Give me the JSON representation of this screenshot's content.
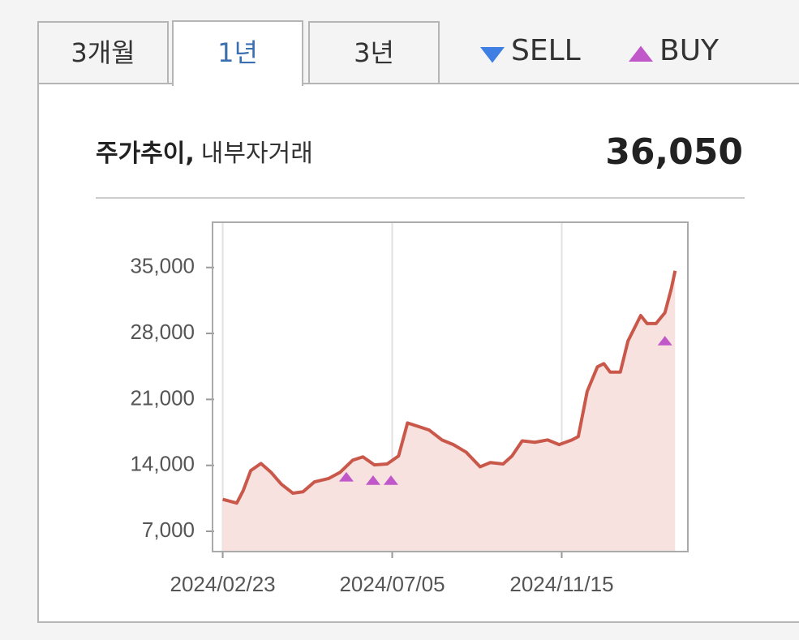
{
  "tabs": {
    "items": [
      "3개월",
      "1년",
      "3년"
    ],
    "active": 1
  },
  "header": {
    "title": "주가추이,",
    "subtitle": "내부자거래",
    "price": "36,050"
  },
  "chart_data": {
    "type": "line",
    "x": [
      "2024/02/23",
      "2024/03/05",
      "2024/03/10",
      "2024/03/16",
      "2024/03/24",
      "2024/04/01",
      "2024/04/09",
      "2024/04/18",
      "2024/04/26",
      "2024/05/05",
      "2024/05/16",
      "2024/05/25",
      "2024/06/04",
      "2024/06/12",
      "2024/06/21",
      "2024/07/01",
      "2024/07/10",
      "2024/07/17",
      "2024/07/25",
      "2024/08/03",
      "2024/08/13",
      "2024/08/22",
      "2024/09/01",
      "2024/09/12",
      "2024/09/20",
      "2024/09/30",
      "2024/10/07",
      "2024/10/15",
      "2024/10/25",
      "2024/11/04",
      "2024/11/13",
      "2024/11/23",
      "2024/11/28",
      "2024/12/05",
      "2024/12/13",
      "2024/12/18",
      "2024/12/23",
      "2024/12/31",
      "2025/01/06",
      "2025/01/16",
      "2025/01/21",
      "2025/01/28",
      "2025/02/04",
      "2025/02/09",
      "2025/02/12"
    ],
    "values": [
      10400,
      10000,
      11300,
      13450,
      14200,
      13250,
      12000,
      11050,
      11200,
      12250,
      12600,
      13250,
      14550,
      14900,
      14050,
      14150,
      15000,
      18500,
      18150,
      17750,
      16700,
      16200,
      15400,
      13850,
      14300,
      14150,
      15000,
      16600,
      16450,
      16700,
      16200,
      16700,
      17050,
      21850,
      24450,
      24800,
      23900,
      23900,
      27200,
      29900,
      29050,
      29050,
      30200,
      32750,
      34650
    ],
    "color": "#c9584b",
    "fill_color": "#f8e2df",
    "markers": [
      {
        "name": "SELL",
        "color": "#3f7fe3",
        "shape": "down",
        "x": [],
        "values": []
      },
      {
        "name": "BUY",
        "color": "#c158c9",
        "shape": "up",
        "x": [
          "2024/05/30",
          "2024/06/20",
          "2024/07/04",
          "2025/02/04"
        ],
        "values": [
          12750,
          12400,
          12400,
          27200
        ]
      }
    ],
    "xlim": [
      "2024/02/15",
      "2025/02/22"
    ],
    "xticks": [
      "2024/02/23",
      "2024/07/05",
      "2024/11/15"
    ],
    "ylim": [
      4850,
      39800
    ],
    "yticks": [
      {
        "value": 7000,
        "label": "7,000"
      },
      {
        "value": 14000,
        "label": "14,000"
      },
      {
        "value": 21000,
        "label": "21,000"
      },
      {
        "value": 28000,
        "label": "28,000"
      },
      {
        "value": 35000,
        "label": "35,000"
      }
    ],
    "grid": "x"
  }
}
